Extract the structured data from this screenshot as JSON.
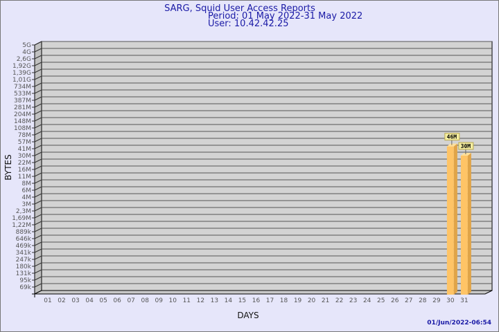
{
  "chart_data": {
    "type": "bar",
    "title": "SARG, Squid User Access Reports",
    "subtitle_lines": [
      "Period: 01 May 2022-31 May 2022",
      "User: 10.42.42.25"
    ],
    "xlabel": "DAYS",
    "ylabel": "BYTES",
    "y_scale": "log",
    "grid": true,
    "y_tick_labels": [
      "5G",
      "4G",
      "2,6G",
      "1,92G",
      "1,39G",
      "1,01G",
      "734M",
      "533M",
      "387M",
      "281M",
      "204M",
      "148M",
      "108M",
      "78M",
      "57M",
      "41M",
      "30M",
      "22M",
      "16M",
      "11M",
      "8M",
      "6M",
      "4M",
      "3M",
      "2,3M",
      "1,69M",
      "1,22M",
      "889k",
      "646k",
      "469k",
      "341k",
      "247k",
      "180k",
      "131k",
      "95k",
      "69k"
    ],
    "categories": [
      "01",
      "02",
      "03",
      "04",
      "05",
      "06",
      "07",
      "08",
      "09",
      "10",
      "11",
      "12",
      "13",
      "14",
      "15",
      "16",
      "17",
      "18",
      "19",
      "20",
      "21",
      "22",
      "23",
      "24",
      "25",
      "26",
      "27",
      "28",
      "29",
      "30",
      "31"
    ],
    "values": [
      0,
      0,
      0,
      0,
      0,
      0,
      0,
      0,
      0,
      0,
      0,
      0,
      0,
      0,
      0,
      0,
      0,
      0,
      0,
      0,
      0,
      0,
      0,
      0,
      0,
      0,
      0,
      0,
      0,
      46000000,
      30000000
    ],
    "data_labels": {
      "30": "46M",
      "31": "30M"
    },
    "bar_color": "#ffc466",
    "timestamp": "01/Jun/2022-06:54"
  }
}
